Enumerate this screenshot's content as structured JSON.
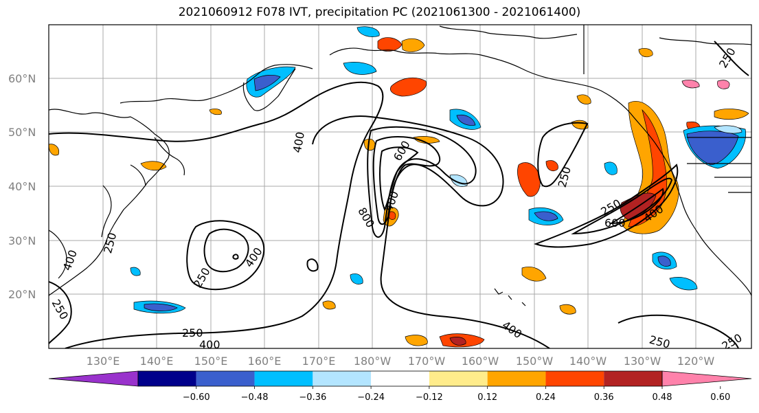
{
  "title": "2021060912 F078 IVT, precipitation PC (2021061300 - 2021061400)",
  "lat_labels": [
    "60°N",
    "50°N",
    "40°N",
    "30°N",
    "20°N"
  ],
  "lon_labels": [
    "130°E",
    "140°E",
    "150°E",
    "160°E",
    "170°E",
    "180°W",
    "170°W",
    "160°W",
    "150°W",
    "140°W",
    "130°W",
    "120°W"
  ],
  "ivt_contour_labels": [
    "400",
    "600",
    "800",
    "400",
    "250",
    "400",
    "250",
    "250",
    "400",
    "600",
    "250",
    "250",
    "400",
    "400",
    "250",
    "250",
    "250",
    "250"
  ],
  "colorbar": {
    "tick_labels": [
      "−0.60",
      "−0.48",
      "−0.36",
      "−0.24",
      "−0.12",
      "0.12",
      "0.24",
      "0.36",
      "0.48",
      "0.60"
    ],
    "colors": [
      "#9932cc",
      "#00008b",
      "#3a5fcd",
      "#00bfff",
      "#b3e5ff",
      "#ffffff",
      "#ffec8b",
      "#ffa500",
      "#ff4500",
      "#b22222",
      "#ff82ab"
    ]
  }
}
